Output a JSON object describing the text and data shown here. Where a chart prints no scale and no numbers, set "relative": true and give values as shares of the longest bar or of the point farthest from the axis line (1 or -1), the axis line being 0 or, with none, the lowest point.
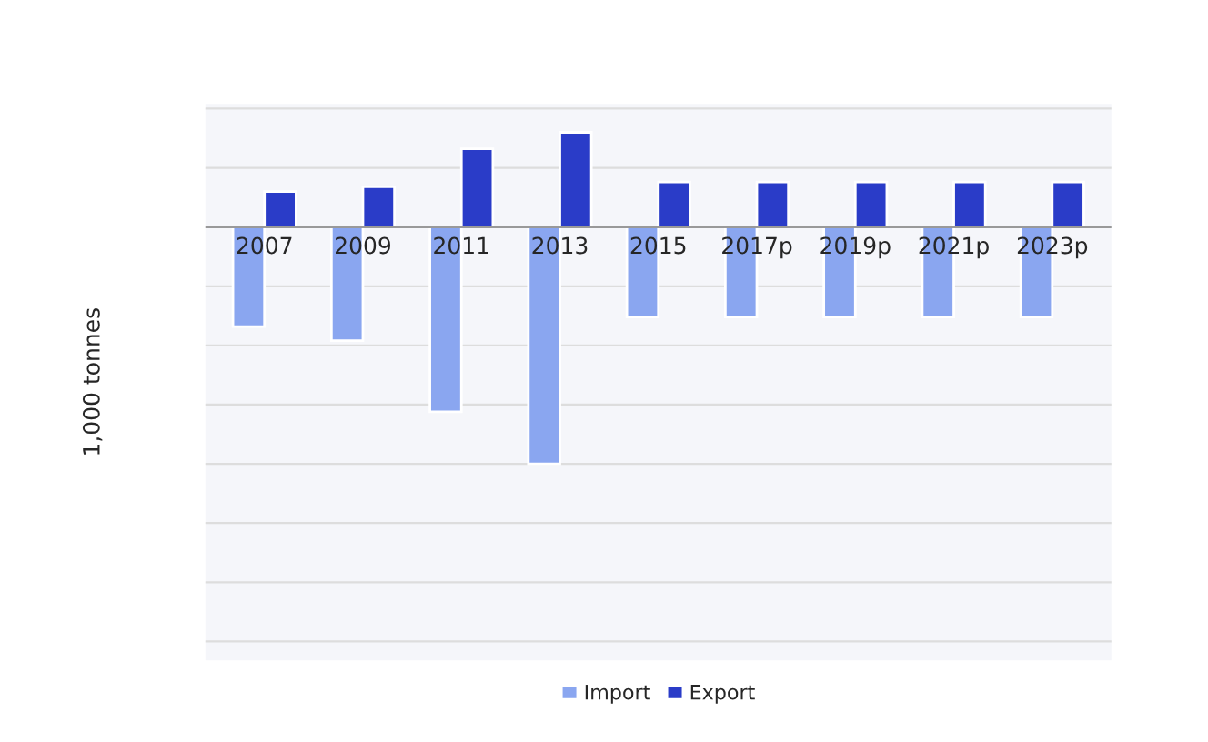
{
  "chart_data": {
    "type": "bar",
    "relative": true,
    "ylabel": "1,000 tonnes",
    "categories": [
      "2007",
      "2009",
      "2011",
      "2013",
      "2015",
      "2017p",
      "2019p",
      "2021p",
      "2023p"
    ],
    "series": [
      {
        "name": "Import",
        "color": "#8aa6f0",
        "values": [
          -0.42,
          -0.48,
          -0.78,
          -1,
          -0.38,
          -0.38,
          -0.38,
          -0.38,
          -0.38
        ]
      },
      {
        "name": "Export",
        "color": "#2a3cc8",
        "values": [
          0.15,
          0.17,
          0.33,
          0.4,
          0.19,
          0.19,
          0.19,
          0.19,
          0.19
        ]
      }
    ],
    "grid": "y",
    "legend": "bottom"
  }
}
